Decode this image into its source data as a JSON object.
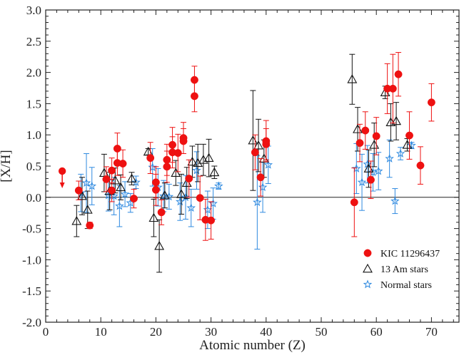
{
  "chart_data": {
    "type": "scatter",
    "xlabel": "Atomic number (Z)",
    "ylabel": "[X/H]",
    "xlim": [
      0,
      75
    ],
    "ylim": [
      -2.0,
      3.0
    ],
    "x_ticks": [
      0,
      10,
      20,
      30,
      40,
      50,
      60,
      70
    ],
    "y_ticks": [
      -2.0,
      -1.5,
      -1.0,
      -0.5,
      0.0,
      0.5,
      1.0,
      1.5,
      2.0,
      2.5,
      3.0
    ],
    "y_tick_labels": [
      "-2.0",
      "-1.5",
      "-1.0",
      "-0.5",
      "0.0",
      "0.5",
      "1.0",
      "1.5",
      "2.0",
      "2.5",
      "3.0"
    ],
    "reference_line_y": 0.0,
    "legend_position": "bottom-right",
    "upper_limit": {
      "series": "KIC 11296437",
      "x": 3,
      "y": 0.42
    },
    "series": [
      {
        "name": "KIC 11296437",
        "marker": "filled-circle",
        "color": "#ee1111",
        "errcolor": "#ee1111",
        "points": [
          {
            "x": 6,
            "y": 0.11,
            "err": 0.15
          },
          {
            "x": 8,
            "y": -0.45,
            "err": 0.05
          },
          {
            "x": 11,
            "y": 0.29,
            "err": 0.2
          },
          {
            "x": 12,
            "y": 0.43,
            "err": 0.2
          },
          {
            "x": 12,
            "y": 0.11,
            "err": 0.18
          },
          {
            "x": 13,
            "y": 0.78,
            "err": 0.25
          },
          {
            "x": 13,
            "y": 0.55,
            "err": 0.2
          },
          {
            "x": 14,
            "y": 0.54,
            "err": 0.22
          },
          {
            "x": 16,
            "y": -0.02,
            "err": 0.15
          },
          {
            "x": 19,
            "y": 0.63,
            "err": 0.25
          },
          {
            "x": 20,
            "y": 0.24,
            "err": 0.25
          },
          {
            "x": 20,
            "y": 0.12,
            "err": 0.25
          },
          {
            "x": 21,
            "y": -0.24,
            "err": 0.2
          },
          {
            "x": 22,
            "y": 0.6,
            "err": 0.25
          },
          {
            "x": 22,
            "y": 0.49,
            "err": 0.25
          },
          {
            "x": 23,
            "y": 0.84,
            "err": 0.28
          },
          {
            "x": 23,
            "y": 0.72,
            "err": 0.25
          },
          {
            "x": 24,
            "y": 0.71,
            "err": 0.3
          },
          {
            "x": 25,
            "y": 0.95,
            "err": 0.25
          },
          {
            "x": 25,
            "y": 0.9,
            "err": 0.2
          },
          {
            "x": 26,
            "y": 0.3,
            "err": 0.3
          },
          {
            "x": 27,
            "y": 1.88,
            "err": 0.22
          },
          {
            "x": 27,
            "y": 1.62,
            "err": 0.25
          },
          {
            "x": 28,
            "y": -0.01,
            "err": 0.35
          },
          {
            "x": 29,
            "y": -0.36,
            "err": 0.33
          },
          {
            "x": 30,
            "y": -0.37,
            "err": 0.3
          },
          {
            "x": 38,
            "y": 0.72,
            "err": 0.28
          },
          {
            "x": 39,
            "y": 0.32,
            "err": 0.3
          },
          {
            "x": 40,
            "y": 0.9,
            "err": 0.33
          },
          {
            "x": 40,
            "y": 0.85,
            "err": 0.25
          },
          {
            "x": 56,
            "y": -0.08,
            "err": 0.55
          },
          {
            "x": 57,
            "y": 0.87,
            "err": 0.3
          },
          {
            "x": 58,
            "y": 1.07,
            "err": 0.3
          },
          {
            "x": 59,
            "y": 0.28,
            "err": 0.3
          },
          {
            "x": 60,
            "y": 0.98,
            "err": 0.3
          },
          {
            "x": 62,
            "y": 1.74,
            "err": 0.4
          },
          {
            "x": 63,
            "y": 1.74,
            "err": 0.55
          },
          {
            "x": 64,
            "y": 1.97,
            "err": 0.35
          },
          {
            "x": 66,
            "y": 0.99,
            "err": 0.38
          },
          {
            "x": 68,
            "y": 0.51,
            "err": 0.3
          },
          {
            "x": 70,
            "y": 1.52,
            "err": 0.3
          }
        ]
      },
      {
        "name": "13 Am stars",
        "marker": "open-triangle",
        "color": "#111111",
        "errcolor": "#111111",
        "points": [
          {
            "x": 6,
            "y": -0.38,
            "err": 0.25
          },
          {
            "x": 7,
            "y": 0.02,
            "err": 0.3
          },
          {
            "x": 8,
            "y": -0.2,
            "err": 0.3
          },
          {
            "x": 11,
            "y": 0.39,
            "err": 0.3
          },
          {
            "x": 12,
            "y": 0.1,
            "err": 0.3
          },
          {
            "x": 13,
            "y": 0.27,
            "err": 0.2
          },
          {
            "x": 14,
            "y": 0.16,
            "err": 0.2
          },
          {
            "x": 16,
            "y": 0.3,
            "err": 0.1
          },
          {
            "x": 19,
            "y": 0.73,
            "err": 0.05
          },
          {
            "x": 20,
            "y": -0.33,
            "err": 0.3
          },
          {
            "x": 21,
            "y": -0.78,
            "err": 0.42
          },
          {
            "x": 22,
            "y": 0.03,
            "err": 0.2
          },
          {
            "x": 24,
            "y": 0.39,
            "err": 0.2
          },
          {
            "x": 25,
            "y": 0.05,
            "err": 0.32
          },
          {
            "x": 26,
            "y": 0.23,
            "err": 0.25
          },
          {
            "x": 27,
            "y": 0.57,
            "err": 0.25
          },
          {
            "x": 28,
            "y": 0.55,
            "err": 0.3
          },
          {
            "x": 29,
            "y": 0.6,
            "err": 0.25
          },
          {
            "x": 30,
            "y": 0.63,
            "err": 0.3
          },
          {
            "x": 31,
            "y": 0.4,
            "err": 0.1
          },
          {
            "x": 38,
            "y": 0.91,
            "err": 0.8
          },
          {
            "x": 39,
            "y": 0.83,
            "err": 0.42
          },
          {
            "x": 40,
            "y": 0.62,
            "err": 0.3
          },
          {
            "x": 56,
            "y": 1.89,
            "err": 0.4
          },
          {
            "x": 57,
            "y": 1.09,
            "err": 0.35
          },
          {
            "x": 59,
            "y": 0.46,
            "err": 0.3
          },
          {
            "x": 60,
            "y": 0.84,
            "err": 0.35
          },
          {
            "x": 62,
            "y": 1.68,
            "err": 0.1
          },
          {
            "x": 63,
            "y": 1.2,
            "err": 0.3
          },
          {
            "x": 64,
            "y": 1.22,
            "err": 0.3
          },
          {
            "x": 66,
            "y": 0.84,
            "err": 0.1
          }
        ]
      },
      {
        "name": "Normal stars",
        "marker": "open-star",
        "color": "#2f8ae0",
        "errcolor": "#2f8ae0",
        "points": [
          {
            "x": 6,
            "y": 0.07,
            "err": 0.3
          },
          {
            "x": 7,
            "y": 0.23,
            "err": 0.47
          },
          {
            "x": 8,
            "y": 0.18,
            "err": 0.3
          },
          {
            "x": 11,
            "y": 0.03,
            "err": 0.25
          },
          {
            "x": 12,
            "y": 0.02,
            "err": 0.3
          },
          {
            "x": 13,
            "y": -0.14,
            "err": 0.33
          },
          {
            "x": 14,
            "y": 0.05,
            "err": 0.2
          },
          {
            "x": 15,
            "y": -0.09,
            "err": 0.15
          },
          {
            "x": 16,
            "y": 0.24,
            "err": 0.1
          },
          {
            "x": 19,
            "y": 0.48,
            "err": 0.3
          },
          {
            "x": 20,
            "y": 0.16,
            "err": 0.3
          },
          {
            "x": 21,
            "y": 0.02,
            "err": 0.25
          },
          {
            "x": 22,
            "y": 0.01,
            "err": 0.2
          },
          {
            "x": 24,
            "y": -0.07,
            "err": 0.3
          },
          {
            "x": 25,
            "y": 0.0,
            "err": 0.35
          },
          {
            "x": 26,
            "y": -0.17,
            "err": 0.3
          },
          {
            "x": 27,
            "y": 0.43,
            "err": 0.3
          },
          {
            "x": 29,
            "y": -0.2,
            "err": 0.3
          },
          {
            "x": 30,
            "y": -0.1,
            "err": 0.25
          },
          {
            "x": 31,
            "y": 0.18,
            "err": 0.05
          },
          {
            "x": 38,
            "y": -0.08,
            "err": 0.75
          },
          {
            "x": 39,
            "y": 0.16,
            "err": 0.4
          },
          {
            "x": 40,
            "y": 0.52,
            "err": 0.3
          },
          {
            "x": 56,
            "y": 0.46,
            "err": 0.4
          },
          {
            "x": 57,
            "y": 0.24,
            "err": 0.45
          },
          {
            "x": 58,
            "y": 0.53,
            "err": 0.3
          },
          {
            "x": 59,
            "y": 0.4,
            "err": 0.3
          },
          {
            "x": 60,
            "y": 0.42,
            "err": 0.3
          },
          {
            "x": 62,
            "y": 0.62,
            "err": 0.3
          },
          {
            "x": 63,
            "y": -0.06,
            "err": 0.2
          },
          {
            "x": 64,
            "y": 0.7,
            "err": 0.1
          },
          {
            "x": 66,
            "y": 0.83,
            "err": 0.05
          }
        ]
      }
    ]
  }
}
